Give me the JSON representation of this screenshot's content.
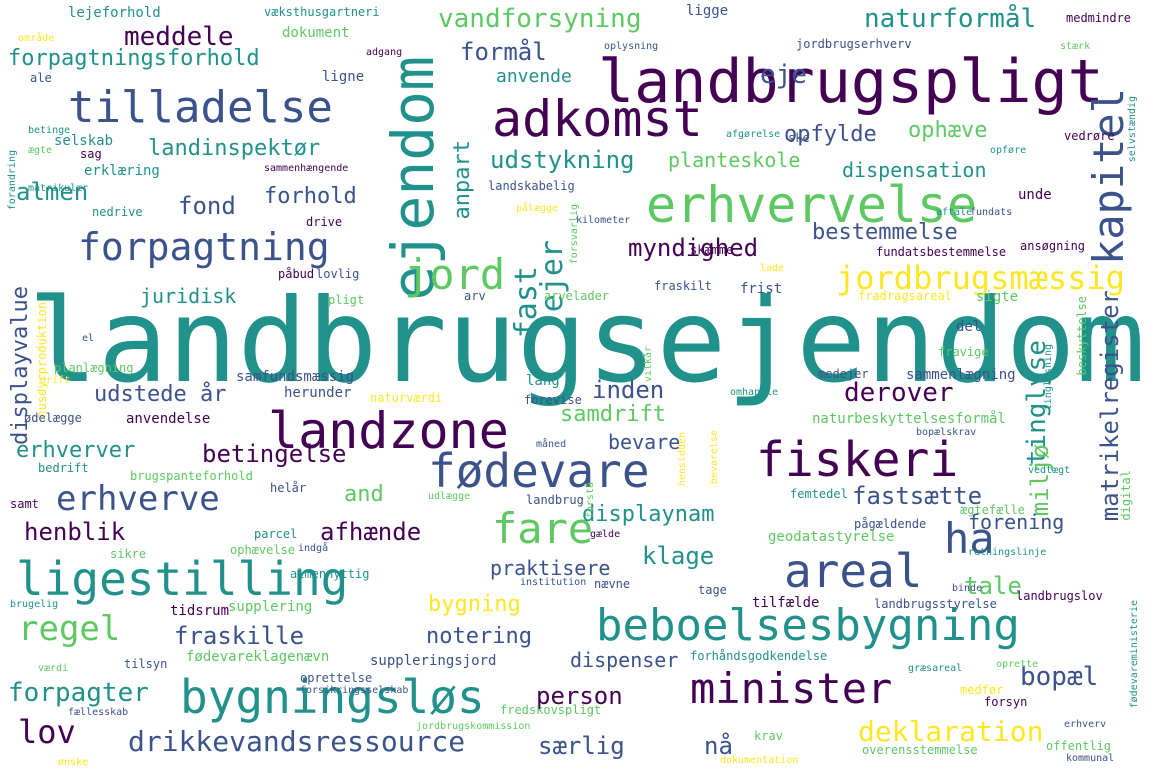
{
  "palette": [
    "#440154",
    "#3b528b",
    "#21918c",
    "#5ec962",
    "#fde725"
  ],
  "words": [
    {
      "text": "landbrugsejendom",
      "color": 2
    },
    {
      "text": "landbrugspligt",
      "color": 0
    },
    {
      "text": "adkomst",
      "color": 0
    },
    {
      "text": "tilladelse",
      "color": 1
    },
    {
      "text": "ejendom",
      "color": 2
    },
    {
      "text": "erhvervelse",
      "color": 3
    },
    {
      "text": "kapitel",
      "color": 1
    },
    {
      "text": "forpagtning",
      "color": 1
    },
    {
      "text": "jord",
      "color": 3
    },
    {
      "text": "fast",
      "color": 2
    },
    {
      "text": "ejer",
      "color": 2
    },
    {
      "text": "jordbrugsmæssig",
      "color": 4
    },
    {
      "text": "landzone",
      "color": 0
    },
    {
      "text": "fødevare",
      "color": 1
    },
    {
      "text": "fiskeri",
      "color": 0
    },
    {
      "text": "ligestilling",
      "color": 2
    },
    {
      "text": "fare",
      "color": 3
    },
    {
      "text": "areal",
      "color": 1
    },
    {
      "text": "ha",
      "color": 1
    },
    {
      "text": "beboelsesbygning",
      "color": 2
    },
    {
      "text": "bygningsløs",
      "color": 2
    },
    {
      "text": "minister",
      "color": 0
    },
    {
      "text": "regel",
      "color": 3
    },
    {
      "text": "lov",
      "color": 0
    },
    {
      "text": "drikkevandsressource",
      "color": 1
    },
    {
      "text": "deklaration",
      "color": 4
    },
    {
      "text": "erhverve",
      "color": 1
    },
    {
      "text": "vandforsyning",
      "color": 3
    },
    {
      "text": "naturformål",
      "color": 2
    },
    {
      "text": "meddele",
      "color": 0
    },
    {
      "text": "formål",
      "color": 1
    },
    {
      "text": "eje",
      "color": 1
    },
    {
      "text": "forpagtningsforhold",
      "color": 2
    },
    {
      "text": "anvende",
      "color": 2
    },
    {
      "text": "landinspektør",
      "color": 2
    },
    {
      "text": "udstykning",
      "color": 2
    },
    {
      "text": "opfylde",
      "color": 1
    },
    {
      "text": "ophæve",
      "color": 3
    },
    {
      "text": "planteskole",
      "color": 3
    },
    {
      "text": "dispensation",
      "color": 2
    },
    {
      "text": "almen",
      "color": 2
    },
    {
      "text": "fond",
      "color": 1
    },
    {
      "text": "forhold",
      "color": 1
    },
    {
      "text": "bestemmelse",
      "color": 1
    },
    {
      "text": "myndighed",
      "color": 0
    },
    {
      "text": "anpart",
      "color": 2
    },
    {
      "text": "juridisk",
      "color": 2
    },
    {
      "text": "displayvalue",
      "color": 1
    },
    {
      "text": "udstede",
      "color": 1
    },
    {
      "text": "år",
      "color": 1
    },
    {
      "text": "inden",
      "color": 1
    },
    {
      "text": "derover",
      "color": 0
    },
    {
      "text": "samdrift",
      "color": 3
    },
    {
      "text": "tinglyse",
      "color": 2
    },
    {
      "text": "matrikelregister",
      "color": 1
    },
    {
      "text": "miljø",
      "color": 3
    },
    {
      "text": "betingelse",
      "color": 0
    },
    {
      "text": "erhverver",
      "color": 2
    },
    {
      "text": "bevare",
      "color": 1
    },
    {
      "text": "and",
      "color": 3
    },
    {
      "text": "fastsætte",
      "color": 1
    },
    {
      "text": "displaynam",
      "color": 2
    },
    {
      "text": "henblik",
      "color": 0
    },
    {
      "text": "afhænde",
      "color": 0
    },
    {
      "text": "forening",
      "color": 1
    },
    {
      "text": "klage",
      "color": 2
    },
    {
      "text": "praktisere",
      "color": 1
    },
    {
      "text": "tale",
      "color": 3
    },
    {
      "text": "bygning",
      "color": 4
    },
    {
      "text": "fraskille",
      "color": 1
    },
    {
      "text": "notering",
      "color": 1
    },
    {
      "text": "dispenser",
      "color": 1
    },
    {
      "text": "person",
      "color": 0
    },
    {
      "text": "forpagter",
      "color": 2
    },
    {
      "text": "særlig",
      "color": 1
    },
    {
      "text": "nå",
      "color": 1
    },
    {
      "text": "bopæl",
      "color": 1
    },
    {
      "text": "lejeforhold",
      "color": 2
    },
    {
      "text": "væksthusgartneri",
      "color": 2
    },
    {
      "text": "ligge",
      "color": 1
    },
    {
      "text": "medmindre",
      "color": 0
    },
    {
      "text": "område",
      "color": 4
    },
    {
      "text": "dokument",
      "color": 3
    },
    {
      "text": "adgang",
      "color": 0
    },
    {
      "text": "oplysning",
      "color": 1
    },
    {
      "text": "jordbrugserhverv",
      "color": 1
    },
    {
      "text": "stærk",
      "color": 3
    },
    {
      "text": "ale",
      "color": 1
    },
    {
      "text": "ligne",
      "color": 1
    },
    {
      "text": "selskab",
      "color": 2
    },
    {
      "text": "sag",
      "color": 0
    },
    {
      "text": "erklæring",
      "color": 2
    },
    {
      "text": "sammenhængende",
      "color": 0
    },
    {
      "text": "afgørelse",
      "color": 2
    },
    {
      "text": "ske",
      "color": 1
    },
    {
      "text": "vedrøre",
      "color": 0
    },
    {
      "text": "opføre",
      "color": 2
    },
    {
      "text": "selvstændig",
      "color": 2
    },
    {
      "text": "forandring",
      "color": 2
    },
    {
      "text": "betinge",
      "color": 2
    },
    {
      "text": "ægte",
      "color": 3
    },
    {
      "text": "matrikulær",
      "color": 2
    },
    {
      "text": "landskabelig",
      "color": 1
    },
    {
      "text": "forsvarlig",
      "color": 3
    },
    {
      "text": "pålægge",
      "color": 4
    },
    {
      "text": "kilometer",
      "color": 1
    },
    {
      "text": "aftale",
      "color": 2
    },
    {
      "text": "fundats",
      "color": 1
    },
    {
      "text": "unde",
      "color": 0
    },
    {
      "text": "nedrive",
      "color": 2
    },
    {
      "text": "drive",
      "color": 0
    },
    {
      "text": "ansøgning",
      "color": 0
    },
    {
      "text": "skæmme",
      "color": 0
    },
    {
      "text": "fundatsbestemmelse",
      "color": 0
    },
    {
      "text": "påbud",
      "color": 0
    },
    {
      "text": "lovlig",
      "color": 1
    },
    {
      "text": "lade",
      "color": 4
    },
    {
      "text": "husdyrproduktion",
      "color": 4
    },
    {
      "text": "pligt",
      "color": 3
    },
    {
      "text": "arv",
      "color": 1
    },
    {
      "text": "arvelader",
      "color": 3
    },
    {
      "text": "fraskilt",
      "color": 1
    },
    {
      "text": "frist",
      "color": 1
    },
    {
      "text": "fradragsareal",
      "color": 4
    },
    {
      "text": "sigte",
      "color": 3
    },
    {
      "text": "el",
      "color": 1
    },
    {
      "text": "del",
      "color": 1
    },
    {
      "text": "beskyttelse",
      "color": 3
    },
    {
      "text": "fravige",
      "color": 3
    },
    {
      "text": "drift",
      "color": 4
    },
    {
      "text": "planlægning",
      "color": 3
    },
    {
      "text": "samfundsmæssig",
      "color": 1
    },
    {
      "text": "lang",
      "color": 2
    },
    {
      "text": "vilkår",
      "color": 3
    },
    {
      "text": "medejer",
      "color": 1
    },
    {
      "text": "sammenlægning",
      "color": 1
    },
    {
      "text": "herunder",
      "color": 1
    },
    {
      "text": "naturværdi",
      "color": 4
    },
    {
      "text": "forevise",
      "color": 1
    },
    {
      "text": "omhandle",
      "color": 2
    },
    {
      "text": "tinglysning",
      "color": 2
    },
    {
      "text": "ødelægge",
      "color": 1
    },
    {
      "text": "anvendelse",
      "color": 0
    },
    {
      "text": "naturbeskyttelsesformål",
      "color": 3
    },
    {
      "text": "bopælskrav",
      "color": 1
    },
    {
      "text": "måned",
      "color": 1
    },
    {
      "text": "bevarelse",
      "color": 4
    },
    {
      "text": "bedrift",
      "color": 2
    },
    {
      "text": "brugspanteforhold",
      "color": 3
    },
    {
      "text": "hensidden",
      "color": 4
    },
    {
      "text": "vedtægt",
      "color": 2
    },
    {
      "text": "samt",
      "color": 0
    },
    {
      "text": "helår",
      "color": 1
    },
    {
      "text": "udlægge",
      "color": 3
    },
    {
      "text": "landbrug",
      "color": 1
    },
    {
      "text": "forstå",
      "color": 3
    },
    {
      "text": "femtedel",
      "color": 2
    },
    {
      "text": "ægtefælle",
      "color": 3
    },
    {
      "text": "parcel",
      "color": 2
    },
    {
      "text": "pågældende",
      "color": 1
    },
    {
      "text": "digital",
      "color": 3
    },
    {
      "text": "sikre",
      "color": 3
    },
    {
      "text": "ophævelse",
      "color": 3
    },
    {
      "text": "indgå",
      "color": 1
    },
    {
      "text": "geodatastyrelse",
      "color": 3
    },
    {
      "text": "gælde",
      "color": 0
    },
    {
      "text": "retningslinje",
      "color": 2
    },
    {
      "text": "almennyttig",
      "color": 2
    },
    {
      "text": "institution",
      "color": 1
    },
    {
      "text": "nævne",
      "color": 1
    },
    {
      "text": "tage",
      "color": 1
    },
    {
      "text": "binde",
      "color": 1
    },
    {
      "text": "brugelig",
      "color": 2
    },
    {
      "text": "tidsrum",
      "color": 0
    },
    {
      "text": "supplering",
      "color": 3
    },
    {
      "text": "tilfælde",
      "color": 0
    },
    {
      "text": "landbrugsstyrelse",
      "color": 1
    },
    {
      "text": "landbrugslov",
      "color": 0
    },
    {
      "text": "fødevareministerie",
      "color": 2
    },
    {
      "text": "værdi",
      "color": 3
    },
    {
      "text": "tilsyn",
      "color": 1
    },
    {
      "text": "fødevareklagenævn",
      "color": 3
    },
    {
      "text": "suppleringsjord",
      "color": 1
    },
    {
      "text": "forhåndsgodkendelse",
      "color": 2
    },
    {
      "text": "græsareal",
      "color": 2
    },
    {
      "text": "oprette",
      "color": 3
    },
    {
      "text": "oprettelse",
      "color": 1
    },
    {
      "text": "forsikringsselskab",
      "color": 1
    },
    {
      "text": "medfør",
      "color": 4
    },
    {
      "text": "fællesskab",
      "color": 1
    },
    {
      "text": "fredskovspligt",
      "color": 3
    },
    {
      "text": "forsyn",
      "color": 0
    },
    {
      "text": "erhverv",
      "color": 1
    },
    {
      "text": "jordbrugskommission",
      "color": 3
    },
    {
      "text": "krav",
      "color": 3
    },
    {
      "text": "offentlig",
      "color": 3
    },
    {
      "text": "ønske",
      "color": 4
    },
    {
      "text": "dokumentation",
      "color": 4
    },
    {
      "text": "overensstemmelse",
      "color": 3
    },
    {
      "text": "kommunal",
      "color": 1
    }
  ]
}
